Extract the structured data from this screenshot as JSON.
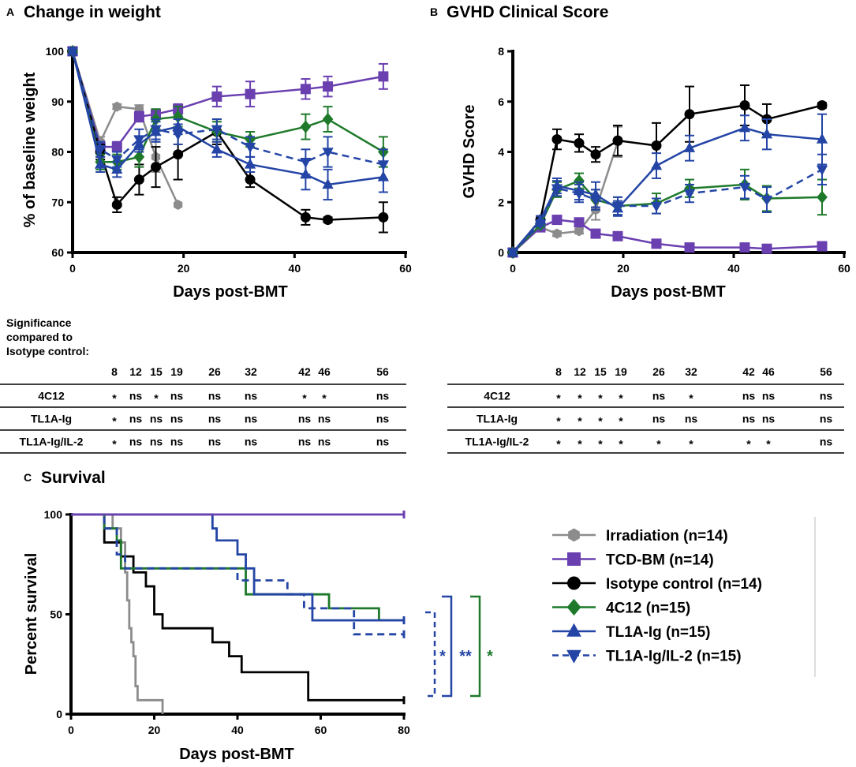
{
  "colors": {
    "irradiation": "#8c8c8c",
    "tcd_bm": "#6a3fb0",
    "isotype": "#000000",
    "c4c12": "#1e7a2a",
    "tl1a_ig": "#2445a6",
    "tl1a_ig_il2": "#2445a6"
  },
  "panel_a": {
    "letter": "A",
    "title": "Change in weight",
    "stats_heading": [
      "Significance",
      "compared to",
      "Isotype control:"
    ],
    "stats_days": [
      "8",
      "12",
      "15",
      "19",
      "26",
      "32",
      "42",
      "46",
      "56"
    ],
    "stats_rows": [
      {
        "label": "4C12",
        "cells": [
          "*",
          "ns",
          "*",
          "ns",
          "ns",
          "ns",
          "*",
          "*",
          "ns"
        ]
      },
      {
        "label": "TL1A-Ig",
        "cells": [
          "*",
          "ns",
          "ns",
          "ns",
          "ns",
          "ns",
          "ns",
          "ns",
          "ns"
        ]
      },
      {
        "label": "TL1A-Ig/IL-2",
        "cells": [
          "*",
          "ns",
          "ns",
          "ns",
          "ns",
          "ns",
          "ns",
          "ns",
          "ns"
        ]
      }
    ]
  },
  "panel_b": {
    "letter": "B",
    "title": "GVHD Clinical Score",
    "stats_days": [
      "8",
      "12",
      "15",
      "19",
      "26",
      "32",
      "42",
      "46",
      "56"
    ],
    "stats_rows": [
      {
        "label": "4C12",
        "cells": [
          "*",
          "*",
          "*",
          "*",
          "ns",
          "*",
          "ns",
          "ns",
          "ns"
        ]
      },
      {
        "label": "TL1A-Ig",
        "cells": [
          "*",
          "*",
          "*",
          "*",
          "ns",
          "ns",
          "ns",
          "ns",
          "ns"
        ]
      },
      {
        "label": "TL1A-Ig/IL-2",
        "cells": [
          "*",
          "*",
          "*",
          "*",
          "*",
          "*",
          "*",
          "*",
          "ns"
        ]
      }
    ]
  },
  "panel_c": {
    "letter": "C",
    "title": "Survival",
    "significance": [
      {
        "text": "*",
        "color": "#2445a6"
      },
      {
        "text": "**",
        "color": "#2445a6"
      },
      {
        "text": "*",
        "color": "#1e7a2a"
      }
    ]
  },
  "legend": [
    {
      "key": "irradiation",
      "label": "Irradiation (n=14)",
      "marker": "hexagon",
      "dashed": false
    },
    {
      "key": "tcd_bm",
      "label": "TCD-BM (n=14)",
      "marker": "square",
      "dashed": false
    },
    {
      "key": "isotype",
      "label": "Isotype control (n=14)",
      "marker": "circle",
      "dashed": false
    },
    {
      "key": "c4c12",
      "label": "4C12 (n=15)",
      "marker": "diamond",
      "dashed": false
    },
    {
      "key": "tl1a_ig",
      "label": "TL1A-Ig (n=15)",
      "marker": "triangle-up",
      "dashed": false
    },
    {
      "key": "tl1a_ig_il2",
      "label": "TL1A-Ig/IL-2 (n=15)",
      "marker": "triangle-down",
      "dashed": true
    }
  ],
  "chart_data": [
    {
      "type": "line",
      "title": "Change in weight",
      "xlabel": "Days post-BMT",
      "ylabel": "% of baseline weight",
      "xlim": [
        0,
        60
      ],
      "ylim": [
        60,
        100
      ],
      "xticks": [
        0,
        20,
        40,
        60
      ],
      "yticks": [
        60,
        70,
        80,
        90,
        100
      ],
      "series": [
        {
          "key": "irradiation",
          "name": "Irradiation",
          "x": [
            0,
            5,
            8,
            12,
            15,
            19
          ],
          "y": [
            100,
            82,
            89,
            88.5,
            79,
            69.5
          ],
          "err": [
            0,
            1,
            0.5,
            0.8,
            3,
            0
          ]
        },
        {
          "key": "tcd_bm",
          "name": "TCD-BM",
          "x": [
            0,
            5,
            8,
            12,
            15,
            19,
            26,
            32,
            42,
            46,
            56
          ],
          "y": [
            100,
            81,
            81,
            87,
            87.5,
            88.5,
            91,
            91.5,
            92.5,
            93,
            95
          ],
          "err": [
            0,
            1,
            1,
            1,
            1,
            1,
            2,
            2.5,
            2,
            2,
            2.5
          ]
        },
        {
          "key": "isotype",
          "name": "Isotype control",
          "x": [
            0,
            5,
            8,
            12,
            15,
            19,
            26,
            32,
            42,
            46,
            56
          ],
          "y": [
            100,
            80,
            69.5,
            74.5,
            77,
            79.5,
            84,
            74.5,
            67,
            66.5,
            67
          ],
          "err": [
            0,
            1.5,
            1.5,
            3,
            4,
            5,
            2.5,
            1.5,
            1.5,
            0.5,
            3
          ]
        },
        {
          "key": "c4c12",
          "name": "4C12",
          "x": [
            0,
            5,
            8,
            12,
            15,
            19,
            26,
            32,
            42,
            46,
            56
          ],
          "y": [
            100,
            78,
            78,
            79,
            86.5,
            87,
            84,
            82.5,
            85,
            86.5,
            80
          ],
          "err": [
            0,
            1.5,
            1.5,
            2,
            2,
            2,
            2,
            1.5,
            2.5,
            2.5,
            3
          ]
        },
        {
          "key": "tl1a_ig",
          "name": "TL1A-Ig",
          "x": [
            0,
            5,
            8,
            12,
            15,
            19,
            26,
            32,
            42,
            46,
            56
          ],
          "y": [
            100,
            77.5,
            76.5,
            81.5,
            84,
            85,
            80.5,
            77.5,
            75.5,
            73.5,
            75
          ],
          "err": [
            0,
            1.5,
            1.5,
            1.5,
            2,
            1.5,
            1.5,
            1.5,
            3,
            3,
            3
          ]
        },
        {
          "key": "tl1a_ig_il2",
          "name": "TL1A-Ig/IL-2",
          "x": [
            0,
            5,
            8,
            12,
            15,
            19,
            26,
            32,
            42,
            46,
            56
          ],
          "y": [
            100,
            80.5,
            78.5,
            82.5,
            84.5,
            83.5,
            84.5,
            81,
            78,
            80,
            77.5
          ],
          "err": [
            0,
            1.5,
            1.5,
            2,
            2,
            2,
            2,
            2,
            2.5,
            3,
            3
          ]
        }
      ]
    },
    {
      "type": "line",
      "title": "GVHD Clinical Score",
      "xlabel": "Days post-BMT",
      "ylabel": "GVHD Score",
      "xlim": [
        0,
        60
      ],
      "ylim": [
        0,
        8
      ],
      "xticks": [
        0,
        20,
        40,
        60
      ],
      "yticks": [
        0,
        2,
        4,
        6,
        8
      ],
      "series": [
        {
          "key": "irradiation",
          "name": "Irradiation",
          "x": [
            0,
            5,
            8,
            12,
            15,
            19
          ],
          "y": [
            0,
            1.0,
            0.75,
            0.85,
            1.7,
            4.4
          ],
          "err": [
            0,
            0.1,
            0.1,
            0.1,
            0.4,
            0.6
          ]
        },
        {
          "key": "tcd_bm",
          "name": "TCD-BM",
          "x": [
            0,
            5,
            8,
            12,
            15,
            19,
            26,
            32,
            42,
            46,
            56
          ],
          "y": [
            0,
            1.0,
            1.3,
            1.2,
            0.75,
            0.65,
            0.35,
            0.2,
            0.2,
            0.15,
            0.25
          ],
          "err": [
            0,
            0.1,
            0.15,
            0.1,
            0.1,
            0.1,
            0.05,
            0.05,
            0.05,
            0.05,
            0.05
          ]
        },
        {
          "key": "isotype",
          "name": "Isotype control",
          "x": [
            0,
            5,
            8,
            12,
            15,
            19,
            26,
            32,
            42,
            46,
            56
          ],
          "y": [
            0,
            1.3,
            4.5,
            4.35,
            3.9,
            4.45,
            4.25,
            5.5,
            5.85,
            5.3,
            5.85
          ],
          "err": [
            0,
            0.15,
            0.4,
            0.35,
            0.3,
            0.6,
            0.9,
            1.1,
            0.8,
            0.6,
            0.1
          ]
        },
        {
          "key": "c4c12",
          "name": "4C12",
          "x": [
            0,
            5,
            8,
            12,
            15,
            19,
            26,
            32,
            42,
            46,
            56
          ],
          "y": [
            0,
            1.1,
            2.5,
            2.85,
            2.1,
            1.85,
            1.95,
            2.55,
            2.7,
            2.15,
            2.2
          ],
          "err": [
            0,
            0.1,
            0.3,
            0.3,
            0.4,
            0.35,
            0.4,
            0.35,
            0.6,
            0.5,
            0.7
          ]
        },
        {
          "key": "tl1a_ig",
          "name": "TL1A-Ig",
          "x": [
            0,
            5,
            8,
            12,
            15,
            19,
            26,
            32,
            42,
            46,
            56
          ],
          "y": [
            0,
            1.3,
            2.65,
            2.45,
            2.3,
            1.75,
            3.45,
            4.15,
            4.95,
            4.7,
            4.5
          ],
          "err": [
            0,
            0.15,
            0.3,
            0.35,
            0.5,
            0.3,
            0.5,
            0.5,
            0.5,
            0.6,
            1.0
          ]
        },
        {
          "key": "tl1a_ig_il2",
          "name": "TL1A-Ig/IL-2",
          "x": [
            0,
            5,
            8,
            12,
            15,
            19,
            26,
            32,
            42,
            46,
            56
          ],
          "y": [
            0,
            1.15,
            2.55,
            2.35,
            2.1,
            1.85,
            1.85,
            2.35,
            2.6,
            2.1,
            3.3
          ],
          "err": [
            0,
            0.1,
            0.3,
            0.35,
            0.4,
            0.35,
            0.3,
            0.35,
            0.45,
            0.5,
            0.6
          ]
        }
      ]
    },
    {
      "type": "line",
      "subtype": "step",
      "title": "Survival",
      "xlabel": "Days post-BMT",
      "ylabel": "Percent survival",
      "xlim": [
        0,
        80
      ],
      "ylim": [
        0,
        100
      ],
      "xticks": [
        0,
        20,
        40,
        60,
        80
      ],
      "yticks": [
        0,
        50,
        100
      ],
      "series": [
        {
          "key": "irradiation",
          "name": "Irradiation",
          "x": [
            0,
            10,
            12,
            13,
            13.5,
            14,
            14.5,
            15,
            15.5,
            16,
            22
          ],
          "y": [
            100,
            93,
            86,
            71,
            57,
            43,
            36,
            29,
            14,
            7,
            0
          ]
        },
        {
          "key": "tcd_bm",
          "name": "TCD-BM",
          "x": [
            0,
            80
          ],
          "y": [
            100,
            100
          ]
        },
        {
          "key": "isotype",
          "name": "Isotype control",
          "x": [
            0,
            8,
            12,
            15,
            18,
            20,
            22,
            34,
            38,
            41,
            57,
            80
          ],
          "y": [
            100,
            86,
            79,
            71,
            64,
            50,
            43,
            36,
            29,
            21,
            7,
            7
          ]
        },
        {
          "key": "c4c12",
          "name": "4C12",
          "x": [
            0,
            8,
            11,
            12,
            42,
            50,
            62,
            74,
            80
          ],
          "y": [
            100,
            93,
            87,
            73,
            60,
            60,
            53,
            47,
            47
          ]
        },
        {
          "key": "tl1a_ig",
          "name": "TL1A-Ig",
          "x": [
            0,
            34,
            35,
            40,
            42,
            44,
            58,
            70,
            80
          ],
          "y": [
            100,
            93,
            87,
            80,
            73,
            60,
            47,
            47,
            47
          ]
        },
        {
          "key": "tl1a_ig_il2",
          "name": "TL1A-Ig/IL-2",
          "x": [
            0,
            8,
            11,
            13,
            40,
            52,
            56,
            68,
            80
          ],
          "y": [
            100,
            93,
            80,
            73,
            67,
            60,
            53,
            40,
            40
          ]
        }
      ]
    }
  ]
}
